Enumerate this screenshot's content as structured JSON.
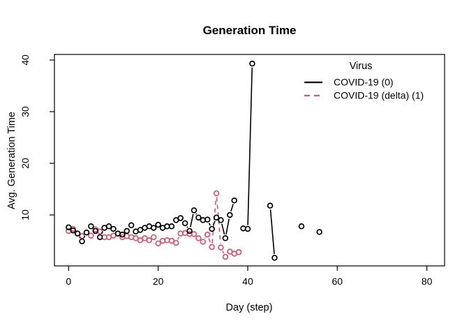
{
  "chart_data": {
    "type": "line",
    "title": "Generation Time",
    "xlabel": "Day (step)",
    "ylabel": "Avg. Generation Time",
    "x_axis": {
      "label": "Day (step)",
      "ticks": [
        0,
        20,
        40,
        60,
        80
      ],
      "range": [
        -3,
        84
      ]
    },
    "y_axis": {
      "label": "Avg. Generation Time",
      "ticks": [
        10,
        20,
        30,
        40
      ],
      "range": [
        0.1,
        41.1
      ]
    },
    "grid": false,
    "marker": "open-circle",
    "legend": {
      "title": "Virus",
      "position": "top-right",
      "entries": [
        {
          "label": "COVID-19 (0)",
          "color": "#000000",
          "linestyle": "solid"
        },
        {
          "label": "COVID-19 (delta) (1)",
          "color": "#DF536B",
          "linestyle": "dashed"
        }
      ]
    },
    "series": [
      {
        "id": "covid19-0",
        "name": "COVID-19 (0)",
        "color": "#000000",
        "linestyle": "solid",
        "marker": "open-circle",
        "days": [
          0,
          1,
          2,
          3,
          4,
          5,
          6,
          7,
          8,
          9,
          10,
          11,
          12,
          13,
          14,
          15,
          16,
          17,
          18,
          19,
          20,
          21,
          22,
          23,
          24,
          25,
          26,
          27,
          28,
          29,
          30,
          31,
          32,
          33,
          34,
          35,
          36,
          37,
          38,
          39,
          40,
          41,
          42,
          43,
          44,
          45,
          46,
          47,
          48,
          49,
          50,
          51,
          52,
          53,
          54,
          55,
          56
        ],
        "values": [
          7.6,
          7.0,
          6.4,
          4.9,
          6.6,
          7.8,
          6.9,
          5.7,
          7.5,
          7.8,
          7.3,
          6.4,
          6.2,
          6.9,
          8.0,
          6.8,
          7.1,
          7.5,
          7.8,
          7.5,
          8.1,
          7.5,
          7.8,
          7.8,
          9.0,
          9.4,
          8.4,
          6.9,
          10.9,
          9.5,
          9.0,
          9.1,
          7.3,
          9.5,
          9.0,
          5.5,
          10.0,
          12.8,
          null,
          7.4,
          7.3,
          39.3,
          null,
          null,
          null,
          11.8,
          1.7,
          null,
          null,
          null,
          null,
          null,
          7.8,
          null,
          null,
          null,
          6.7
        ]
      },
      {
        "id": "covid19-delta-1",
        "name": "COVID-19 (delta) (1)",
        "color": "#DF536B",
        "linestyle": "dashed",
        "marker": "open-circle",
        "days": [
          0,
          1,
          2,
          3,
          4,
          5,
          6,
          7,
          8,
          9,
          10,
          11,
          12,
          13,
          14,
          15,
          16,
          17,
          18,
          19,
          20,
          21,
          22,
          23,
          24,
          25,
          26,
          27,
          28,
          29,
          30,
          31,
          32,
          33,
          34,
          35,
          36,
          37,
          38
        ],
        "values": [
          6.9,
          7.3,
          6.4,
          5.9,
          6.6,
          6.0,
          7.2,
          6.8,
          5.7,
          5.7,
          6.0,
          6.4,
          5.7,
          5.9,
          5.7,
          5.5,
          5.1,
          5.5,
          5.1,
          5.7,
          4.5,
          5.0,
          5.1,
          5.0,
          4.6,
          6.4,
          6.5,
          6.3,
          6.3,
          5.5,
          4.8,
          6.2,
          3.8,
          14.2,
          3.7,
          1.9,
          2.9,
          2.5,
          2.8
        ]
      }
    ]
  }
}
